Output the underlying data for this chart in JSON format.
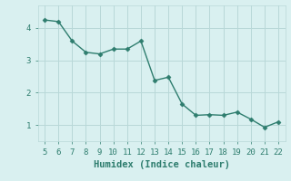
{
  "x": [
    5,
    6,
    7,
    8,
    9,
    10,
    11,
    12,
    13,
    14,
    15,
    16,
    17,
    18,
    19,
    20,
    21,
    22
  ],
  "y": [
    4.25,
    4.2,
    3.6,
    3.25,
    3.2,
    3.35,
    3.35,
    3.6,
    2.38,
    2.48,
    1.65,
    1.3,
    1.32,
    1.3,
    1.4,
    1.18,
    0.93,
    1.1
  ],
  "xlabel": "Humidex (Indice chaleur)",
  "line_color": "#2e7d6e",
  "background_color": "#d9f0f0",
  "grid_color": "#b8d8d8",
  "yticks": [
    1,
    2,
    3,
    4
  ],
  "xticks": [
    5,
    6,
    7,
    8,
    9,
    10,
    11,
    12,
    13,
    14,
    15,
    16,
    17,
    18,
    19,
    20,
    21,
    22
  ],
  "ylim": [
    0.5,
    4.7
  ],
  "xlim": [
    4.5,
    22.5
  ],
  "tick_color": "#2e7d6e",
  "label_color": "#2e7d6e"
}
